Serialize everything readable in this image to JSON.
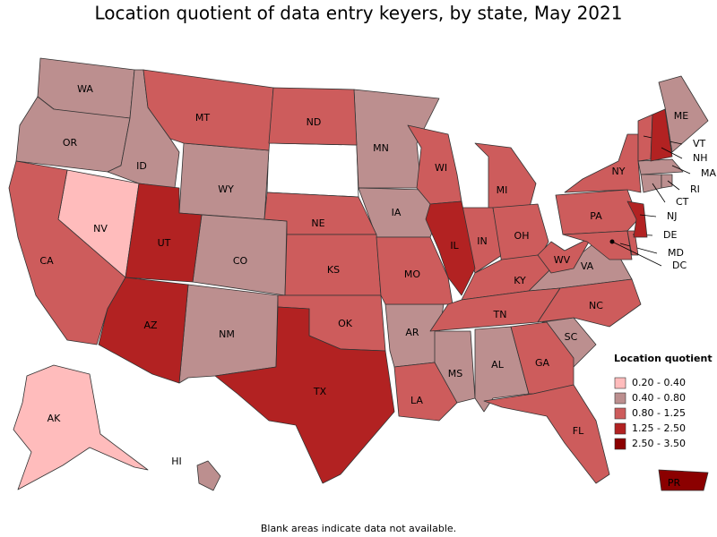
{
  "title": "Location quotient of data entry keyers, by state, May 2021",
  "legend": {
    "title": "Location quotient",
    "items": [
      {
        "label": "0.20 - 0.40",
        "color": "#ffbcbc",
        "states": [
          "NV",
          "AK"
        ]
      },
      {
        "label": "0.40 - 0.80",
        "color": "#bc8f8f",
        "states": [
          "WA",
          "OR",
          "ID",
          "WY",
          "CO",
          "NM",
          "MN",
          "IA",
          "AR",
          "MS",
          "AL",
          "SC",
          "VA",
          "ME",
          "MA",
          "CT",
          "RI",
          "HI"
        ]
      },
      {
        "label": "0.80 - 1.25",
        "color": "#cd5c5c",
        "states": [
          "CA",
          "MT",
          "ND",
          "NE",
          "KS",
          "OK",
          "MO",
          "WI",
          "MI",
          "IN",
          "OH",
          "KY",
          "TN",
          "WV",
          "PA",
          "NY",
          "NC",
          "GA",
          "FL",
          "LA",
          "VT",
          "MD",
          "DE",
          "DC"
        ]
      },
      {
        "label": "1.25 - 2.50",
        "color": "#b22222",
        "states": [
          "UT",
          "AZ",
          "TX",
          "IL",
          "NJ",
          "NH"
        ]
      },
      {
        "label": "2.50 - 3.50",
        "color": "#8b0000",
        "states": [
          "PR"
        ]
      }
    ]
  },
  "footnote": "Blank areas indicate data not available."
}
